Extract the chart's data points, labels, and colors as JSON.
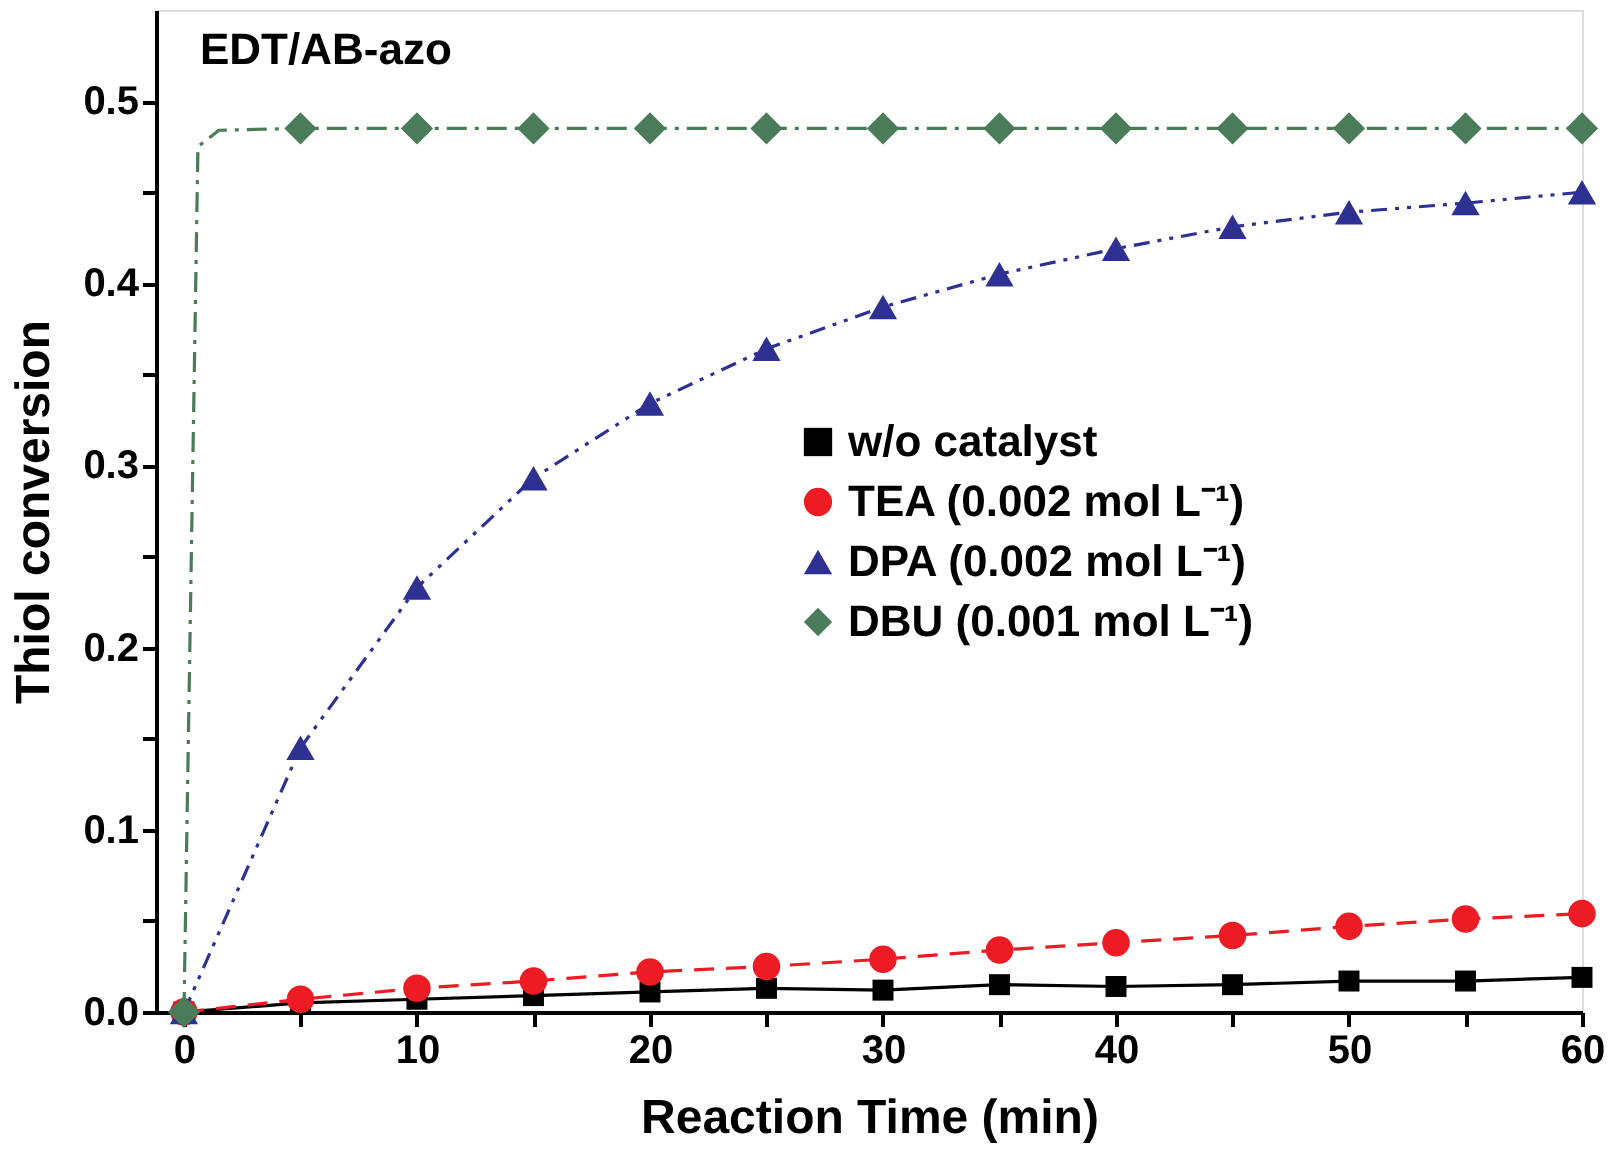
{
  "chart_data": {
    "type": "line",
    "xlabel": "Reaction Time (min)",
    "ylabel": "Thiol conversion",
    "annotations": [
      "EDT/AB-azo"
    ],
    "xlim": [
      -1.2,
      60
    ],
    "ylim": [
      0,
      0.55
    ],
    "xticks": [
      0,
      {
        "value": 5,
        "label": null
      },
      10,
      {
        "value": 15,
        "label": null
      },
      20,
      {
        "value": 25,
        "label": null
      },
      30,
      {
        "value": 35,
        "label": null
      },
      40,
      {
        "value": 45,
        "label": null
      },
      50,
      {
        "value": 55,
        "label": null
      },
      60
    ],
    "yticks": [
      {
        "value": 0,
        "label": "0.0"
      },
      {
        "value": 0.05,
        "label": null
      },
      0.1,
      {
        "value": 0.15,
        "label": null
      },
      0.2,
      {
        "value": 0.25,
        "label": null
      },
      0.3,
      {
        "value": 0.35,
        "label": null
      },
      0.4,
      {
        "value": 0.45,
        "label": null
      },
      0.5
    ],
    "legend": "right",
    "grid": false,
    "x": [
      0,
      5,
      10,
      15,
      20,
      25,
      30,
      35,
      40,
      45,
      50,
      55,
      60
    ],
    "series": [
      {
        "name": "w/o catalyst",
        "color": "#000000",
        "marker": "square",
        "line_style": "solid",
        "values": [
          0,
          0.005,
          0.007,
          0.009,
          0.011,
          0.013,
          0.012,
          0.015,
          0.014,
          0.015,
          0.017,
          0.017,
          0.019
        ]
      },
      {
        "name": "TEA  (0.002 mol L⁻¹)",
        "color": "#ed1c24",
        "marker": "circle",
        "line_style": "dashed",
        "values": [
          0,
          0.007,
          0.013,
          0.017,
          0.022,
          0.025,
          0.029,
          0.034,
          0.038,
          0.042,
          0.047,
          0.051,
          0.054
        ]
      },
      {
        "name": "DPA  (0.002 mol L⁻¹)",
        "color": "#2e3192",
        "marker": "triangle",
        "line_style": "dashdotdot",
        "values": [
          0,
          0.145,
          0.233,
          0.293,
          0.334,
          0.364,
          0.387,
          0.405,
          0.419,
          0.431,
          0.439,
          0.444,
          0.45
        ]
      },
      {
        "name": "DBU  (0.001 mol L⁻¹)",
        "type": "scatter",
        "color": "#4a7c59",
        "marker": "diamond",
        "values": [
          0,
          0.485,
          0.485,
          0.485,
          0.485,
          0.485,
          0.485,
          0.485,
          0.485,
          0.485,
          0.485,
          0.485,
          0.485
        ]
      },
      {
        "type": "line",
        "color": "#4a7c59",
        "marker": "none",
        "line_style": "dashdot",
        "x": [
          0,
          0.6,
          1.5,
          5,
          10,
          15,
          20,
          25,
          30,
          35,
          40,
          45,
          50,
          55,
          60
        ],
        "values": [
          0,
          0.475,
          0.484,
          0.485,
          0.485,
          0.485,
          0.485,
          0.485,
          0.485,
          0.485,
          0.485,
          0.485,
          0.485,
          0.485,
          0.485
        ]
      }
    ]
  }
}
